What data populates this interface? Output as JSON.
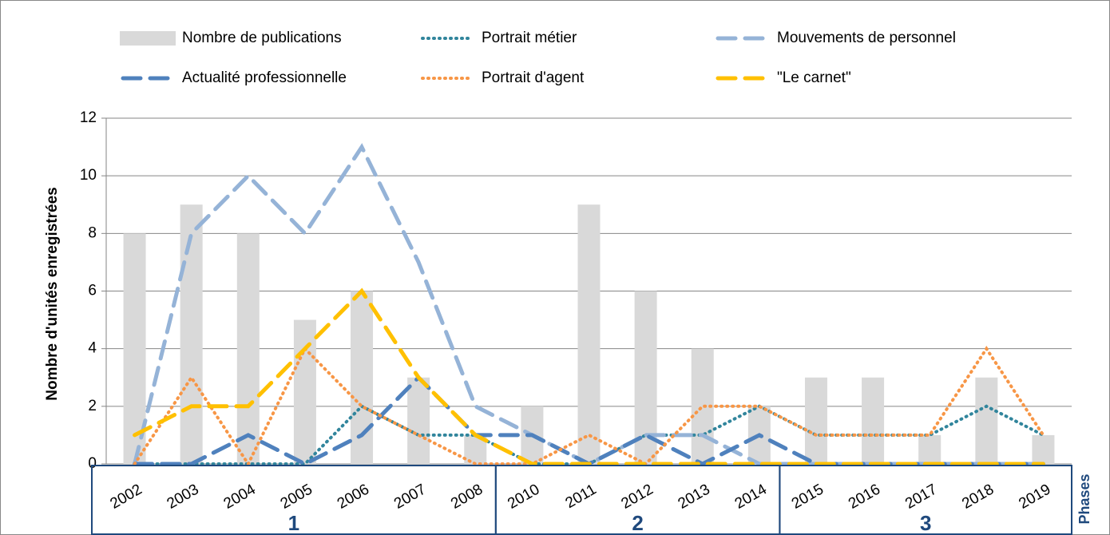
{
  "chart_data": {
    "type": "combo",
    "y_label": "Nombre d'unités enregistrées",
    "categories": [
      "2002",
      "2003",
      "2004",
      "2005",
      "2006",
      "2007",
      "2008",
      "2010",
      "2011",
      "2012",
      "2013",
      "2014",
      "2015",
      "2016",
      "2017",
      "2018",
      "2019"
    ],
    "ylim": [
      0,
      12
    ],
    "yticks": [
      0,
      2,
      4,
      6,
      8,
      10,
      12
    ],
    "grid": true,
    "phases": {
      "label": "Phases",
      "groups": [
        {
          "name": "1",
          "size": 7
        },
        {
          "name": "2",
          "size": 5
        },
        {
          "name": "3",
          "size": 5
        }
      ]
    },
    "series": [
      {
        "name": "Nombre de publications",
        "type": "bar",
        "color": "#d9d9d9",
        "values": [
          8,
          9,
          8,
          5,
          6,
          3,
          1,
          2,
          9,
          6,
          4,
          2,
          3,
          3,
          1,
          3,
          1
        ]
      },
      {
        "name": "Portrait métier",
        "type": "line",
        "style": "dot",
        "color": "#31859c",
        "values": [
          0,
          0,
          0,
          0,
          2,
          1,
          1,
          0,
          0,
          1,
          1,
          2,
          1,
          1,
          1,
          2,
          1
        ]
      },
      {
        "name": "Mouvements de personnel",
        "type": "line",
        "style": "dash",
        "color": "#95b3d7",
        "values": [
          0,
          8,
          10,
          8,
          11,
          7,
          2,
          1,
          0,
          1,
          1,
          0,
          0,
          0,
          0,
          0,
          0
        ]
      },
      {
        "name": "Actualité professionnelle",
        "type": "line",
        "style": "dash",
        "color": "#4f81bd",
        "values": [
          0,
          0,
          1,
          0,
          1,
          3,
          1,
          1,
          0,
          1,
          0,
          1,
          0,
          0,
          0,
          0,
          0
        ]
      },
      {
        "name": "Portrait d'agent",
        "type": "line",
        "style": "dot",
        "color": "#f79646",
        "values": [
          0,
          3,
          0,
          4,
          2,
          1,
          0,
          0,
          1,
          0,
          2,
          2,
          1,
          1,
          1,
          4,
          1
        ]
      },
      {
        "name": "\"Le carnet\"",
        "type": "line",
        "style": "dash",
        "color": "#ffc000",
        "values": [
          1,
          2,
          2,
          4,
          6,
          3,
          1,
          0,
          0,
          0,
          0,
          0,
          0,
          0,
          0,
          0,
          0
        ]
      }
    ]
  }
}
